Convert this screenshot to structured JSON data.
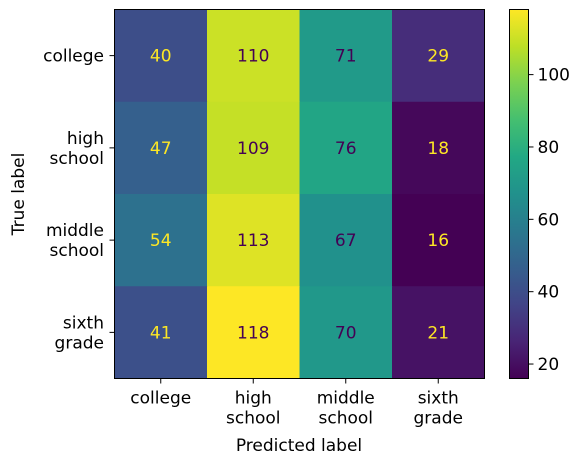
{
  "chart_data": {
    "type": "heatmap",
    "title": "",
    "xlabel": "Predicted label",
    "ylabel": "True label",
    "x_categories": [
      [
        "college"
      ],
      [
        "high",
        "school"
      ],
      [
        "middle",
        "school"
      ],
      [
        "sixth",
        "grade"
      ]
    ],
    "y_categories": [
      [
        "college"
      ],
      [
        "high",
        "school"
      ],
      [
        "middle",
        "school"
      ],
      [
        "sixth",
        "grade"
      ]
    ],
    "values": [
      [
        40,
        110,
        71,
        29
      ],
      [
        47,
        109,
        76,
        18
      ],
      [
        54,
        113,
        67,
        16
      ],
      [
        41,
        118,
        70,
        21
      ]
    ],
    "colormap": "viridis",
    "color_range": [
      16,
      118
    ],
    "colorbar_ticks": [
      20,
      40,
      60,
      80,
      100
    ]
  }
}
